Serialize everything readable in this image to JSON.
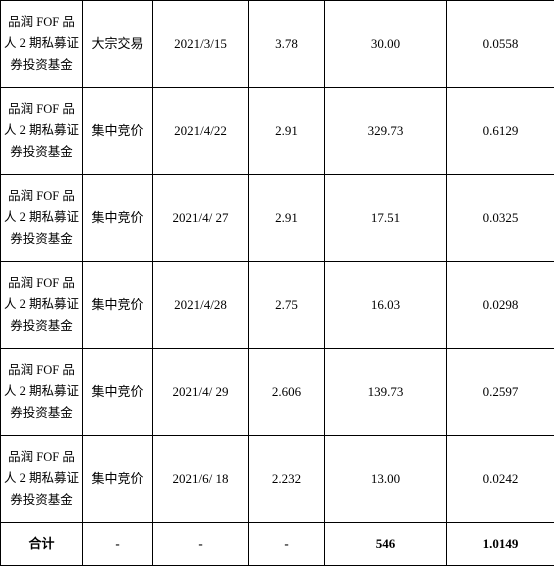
{
  "table": {
    "columns_count": 6,
    "border_color": "#000000",
    "background_color": "#ffffff",
    "text_color": "#000000",
    "cell_fontsize": 13,
    "fund_name_fontsize": 12.5,
    "rows": [
      {
        "fund": "品润 FOF 品人 2 期私募证券投资基金",
        "method": "大宗交易",
        "date": "2021/3/15",
        "price": "3.78",
        "amount": "30.00",
        "ratio": "0.0558"
      },
      {
        "fund": "品润 FOF 品人 2 期私募证券投资基金",
        "method": "集中竞价",
        "date": "2021/4/22",
        "price": "2.91",
        "amount": "329.73",
        "ratio": "0.6129"
      },
      {
        "fund": "品润 FOF 品人 2 期私募证券投资基金",
        "method": "集中竞价",
        "date": "2021/4/ 27",
        "price": "2.91",
        "amount": "17.51",
        "ratio": "0.0325"
      },
      {
        "fund": "品润 FOF 品人 2 期私募证券投资基金",
        "method": "集中竞价",
        "date": "2021/4/28",
        "price": "2.75",
        "amount": "16.03",
        "ratio": "0.0298"
      },
      {
        "fund": "品润 FOF 品人 2 期私募证券投资基金",
        "method": "集中竞价",
        "date": "2021/4/ 29",
        "price": "2.606",
        "amount": "139.73",
        "ratio": "0.2597"
      },
      {
        "fund": "品润 FOF 品人 2 期私募证券投资基金",
        "method": "集中竞价",
        "date": "2021/6/ 18",
        "price": "2.232",
        "amount": "13.00",
        "ratio": "0.0242"
      }
    ],
    "total": {
      "label": "合计",
      "method": "-",
      "date": "-",
      "price": "-",
      "amount": "546",
      "ratio": "1.0149"
    }
  }
}
